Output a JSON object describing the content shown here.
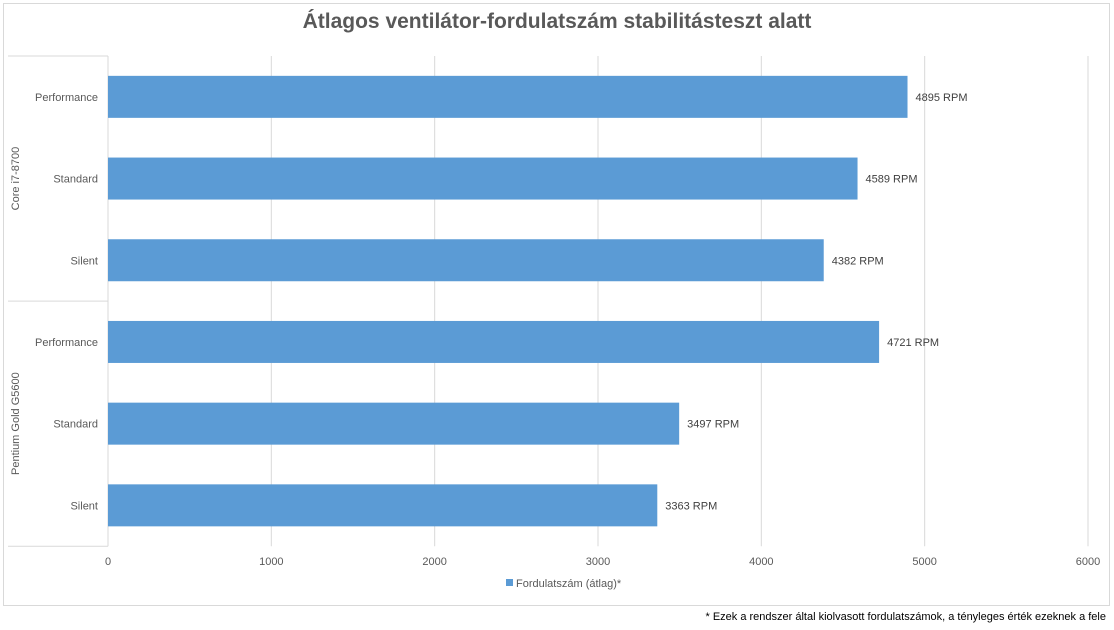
{
  "chart_data": {
    "type": "bar",
    "orientation": "horizontal",
    "title": "Átlagos ventilátor-fordulatszám stabilitásteszt alatt",
    "groups": [
      {
        "name": "Core i7-8700",
        "categories": [
          "Performance",
          "Standard",
          "Silent"
        ],
        "values": [
          4895,
          4589,
          4382
        ],
        "labels": [
          "4895 RPM",
          "4589 RPM",
          "4382 RPM"
        ]
      },
      {
        "name": "Pentium Gold G5600",
        "categories": [
          "Performance",
          "Standard",
          "Silent"
        ],
        "values": [
          4721,
          3497,
          3363
        ],
        "labels": [
          "4721 RPM",
          "3497 RPM",
          "3363 RPM"
        ]
      }
    ],
    "series": [
      {
        "name": "Fordulatszám (átlag)*",
        "color": "#5b9bd5"
      }
    ],
    "xlim": [
      0,
      6000
    ],
    "xticks": [
      "0",
      "1000",
      "2000",
      "3000",
      "4000",
      "5000",
      "6000"
    ],
    "grid": true,
    "legend_position": "bottom"
  },
  "footnote": "* Ezek a rendszer által kiolvasott fordulatszámok, a tényleges érték ezeknek a fele"
}
